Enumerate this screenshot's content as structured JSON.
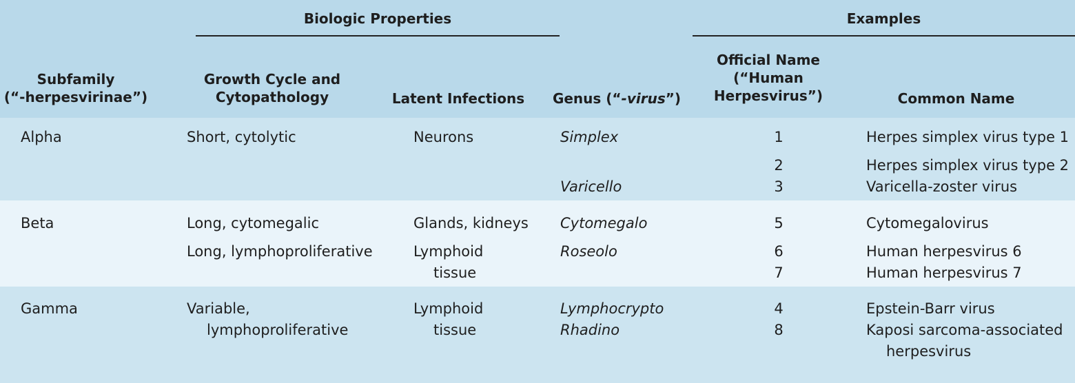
{
  "header": {
    "group_biologic": "Biologic Properties",
    "group_examples": "Examples",
    "subfamily_line1": "Subfamily",
    "subfamily_line2": "(“-herpesvirinae”)",
    "growth_line1": "Growth Cycle and",
    "growth_line2": "Cytopathology",
    "latent": "Latent Infections",
    "genus_prefix": "Genus (“",
    "genus_italic": "-virus",
    "genus_suffix": "”)",
    "official_line1": "Official Name",
    "official_line2": "(“Human",
    "official_line3": "Herpesvirus”)",
    "common": "Common Name"
  },
  "rows": {
    "alpha": {
      "subfamily": "Alpha",
      "growth": "Short, cytolytic",
      "latent": "Neurons",
      "genus1": "Simplex",
      "genus2": "Varicello",
      "num1": "1",
      "num2": "2",
      "num3": "3",
      "common1": "Herpes simplex virus type 1",
      "common2": "Herpes simplex virus type 2",
      "common3": "Varicella-zoster virus"
    },
    "beta": {
      "subfamily": "Beta",
      "growth1": "Long, cytomegalic",
      "growth2": "Long, lymphoproliferative",
      "latent1": "Glands, kidneys",
      "latent2_line1": "Lymphoid",
      "latent2_line2": "tissue",
      "genus1": "Cytomegalo",
      "genus2": "Roseolo",
      "num1": "5",
      "num2": "6",
      "num3": "7",
      "common1": "Cytomegalovirus",
      "common2": "Human herpesvirus 6",
      "common3": "Human herpesvirus 7"
    },
    "gamma": {
      "subfamily": "Gamma",
      "growth_line1": "Variable,",
      "growth_line2": "lymphoproliferative",
      "latent_line1": "Lymphoid",
      "latent_line2": "tissue",
      "genus1": "Lymphocrypto",
      "genus2": "Rhadino",
      "num1": "4",
      "num2": "8",
      "common1": "Epstein-Barr virus",
      "common2_line1": "Kaposi sarcoma-associated",
      "common2_line2": "herpesvirus"
    }
  },
  "colors": {
    "header_bg": "#b9d9ea",
    "band_dark": "#cce4f0",
    "band_light": "#eaf4fa",
    "rule": "#222222"
  }
}
